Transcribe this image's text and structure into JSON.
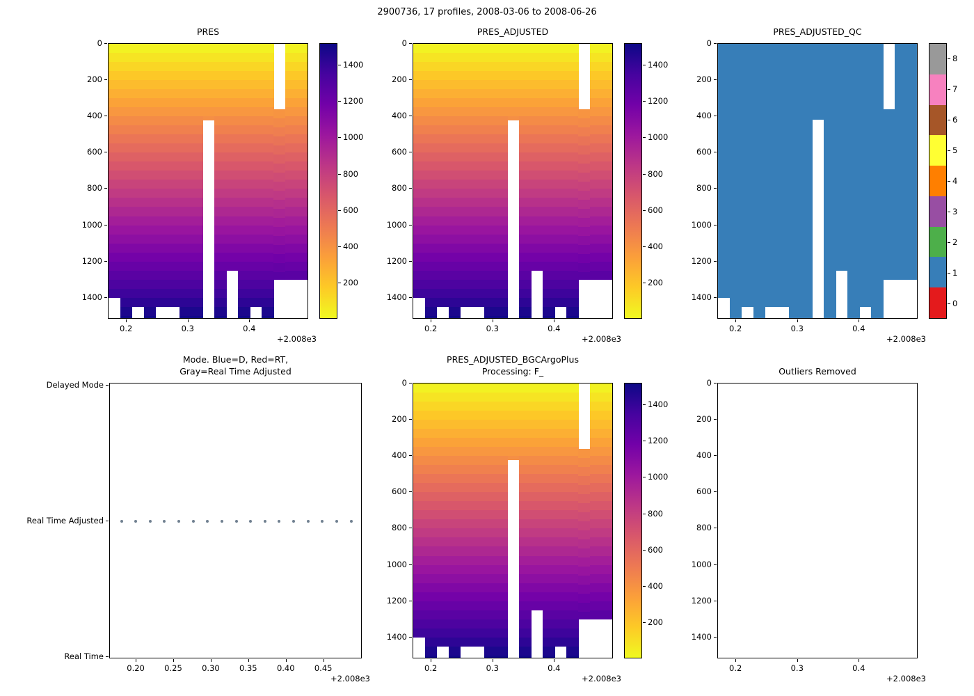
{
  "figure": {
    "title": "2900736, 17 profiles, 2008-03-06 to 2008-06-26"
  },
  "palettes": {
    "plasma_dark_to_yellow": [
      "#0d0887",
      "#46039f",
      "#7201a8",
      "#9c179e",
      "#bd3786",
      "#d8576b",
      "#ed7953",
      "#fb9f3a",
      "#fdca26",
      "#f0f921"
    ],
    "set1_qc": [
      "#e41a1c",
      "#377eb8",
      "#4daf4a",
      "#984ea3",
      "#ff7f00",
      "#ffff33",
      "#a65628",
      "#f781bf",
      "#999999"
    ]
  },
  "profiles": {
    "count": 17,
    "date_range": "2008-03-06 to 2008-06-26",
    "x": [
      0.18,
      0.1991,
      0.2183,
      0.2374,
      0.2565,
      0.2756,
      0.2948,
      0.3139,
      0.3331,
      0.3521,
      0.3713,
      0.3904,
      0.4095,
      0.4286,
      0.4478,
      0.4669,
      0.486
    ],
    "depth_top": [
      0,
      0,
      0,
      0,
      0,
      0,
      0,
      0,
      0,
      0,
      0,
      0,
      0,
      0,
      360,
      0,
      0
    ],
    "depth_bottom": [
      1400,
      1519,
      1450,
      1519,
      1450,
      1450,
      1519,
      1519,
      420,
      1519,
      1250,
      1519,
      1450,
      1519,
      1300,
      1300,
      1300
    ]
  },
  "chart_data": [
    {
      "id": "pres",
      "type": "heatmap",
      "title_lines": [
        "PRES"
      ],
      "data_source": "profiles",
      "xlim": [
        0.1704,
        0.4956
      ],
      "ylim": [
        0,
        1520
      ],
      "xticks": [
        0.2,
        0.3,
        0.4
      ],
      "xtick_labels": [
        "0.2",
        "0.3",
        "0.4"
      ],
      "yticks": [
        0,
        200,
        400,
        600,
        800,
        1000,
        1200,
        1400
      ],
      "x_offset_label": "+2.008e3",
      "colormap": "plasma_reversed",
      "colorbar": {
        "vmin": 0,
        "vmax": 1520,
        "ticks": [
          200,
          400,
          600,
          800,
          1000,
          1200,
          1400
        ]
      }
    },
    {
      "id": "pres_adjusted",
      "type": "heatmap",
      "title_lines": [
        "PRES_ADJUSTED"
      ],
      "data_source": "profiles",
      "xlim": [
        0.1704,
        0.4956
      ],
      "ylim": [
        0,
        1520
      ],
      "xticks": [
        0.2,
        0.3,
        0.4
      ],
      "xtick_labels": [
        "0.2",
        "0.3",
        "0.4"
      ],
      "yticks": [
        0,
        200,
        400,
        600,
        800,
        1000,
        1200,
        1400
      ],
      "x_offset_label": "+2.008e3",
      "colormap": "plasma_reversed",
      "colorbar": {
        "vmin": 0,
        "vmax": 1520,
        "ticks": [
          200,
          400,
          600,
          800,
          1000,
          1200,
          1400
        ]
      }
    },
    {
      "id": "pres_adjusted_qc",
      "type": "heatmap_qc",
      "title_lines": [
        "PRES_ADJUSTED_QC"
      ],
      "data_source": "profiles",
      "qc_value": 1,
      "xlim": [
        0.1704,
        0.4956
      ],
      "ylim": [
        0,
        1520
      ],
      "xticks": [
        0.2,
        0.3,
        0.4
      ],
      "xtick_labels": [
        "0.2",
        "0.3",
        "0.4"
      ],
      "yticks": [
        0,
        200,
        400,
        600,
        800,
        1000,
        1200,
        1400
      ],
      "x_offset_label": "+2.008e3",
      "colorbar_discrete": {
        "palette": "set1_qc",
        "labels": [
          "0",
          "1",
          "2",
          "3",
          "4",
          "5",
          "6",
          "7",
          "8"
        ]
      }
    },
    {
      "id": "mode",
      "type": "scatter_categorical",
      "title_lines": [
        "Mode. Blue=D, Red=RT,",
        "Gray=Real Time Adjusted"
      ],
      "categories_top_to_bottom": [
        "Delayed Mode",
        "Real Time Adjusted",
        "Real Time"
      ],
      "points": {
        "x_source": "profiles",
        "category": "Real Time Adjusted",
        "color": "#708090"
      },
      "xlim": [
        0.1647,
        0.5013
      ],
      "xticks": [
        0.2,
        0.25,
        0.3,
        0.35,
        0.4,
        0.45
      ],
      "xtick_labels": [
        "0.20",
        "0.25",
        "0.30",
        "0.35",
        "0.40",
        "0.45"
      ],
      "x_offset_label": "+2.008e3"
    },
    {
      "id": "pres_adjusted_bgc",
      "type": "heatmap",
      "title_lines": [
        "PRES_ADJUSTED_BGCArgoPlus",
        "Processing: F_"
      ],
      "data_source": "profiles",
      "xlim": [
        0.1704,
        0.4956
      ],
      "ylim": [
        0,
        1520
      ],
      "xticks": [
        0.2,
        0.3,
        0.4
      ],
      "xtick_labels": [
        "0.2",
        "0.3",
        "0.4"
      ],
      "yticks": [
        0,
        200,
        400,
        600,
        800,
        1000,
        1200,
        1400
      ],
      "x_offset_label": "+2.008e3",
      "colormap": "plasma_reversed",
      "colorbar": {
        "vmin": 0,
        "vmax": 1520,
        "ticks": [
          200,
          400,
          600,
          800,
          1000,
          1200,
          1400
        ]
      }
    },
    {
      "id": "outliers",
      "type": "empty",
      "title_lines": [
        "Outliers Removed"
      ],
      "xlim": [
        0.1704,
        0.4956
      ],
      "ylim": [
        0,
        1520
      ],
      "xticks": [
        0.2,
        0.3,
        0.4
      ],
      "xtick_labels": [
        "0.2",
        "0.3",
        "0.4"
      ],
      "yticks": [
        0,
        200,
        400,
        600,
        800,
        1000,
        1200,
        1400
      ],
      "x_offset_label": "+2.008e3"
    }
  ]
}
